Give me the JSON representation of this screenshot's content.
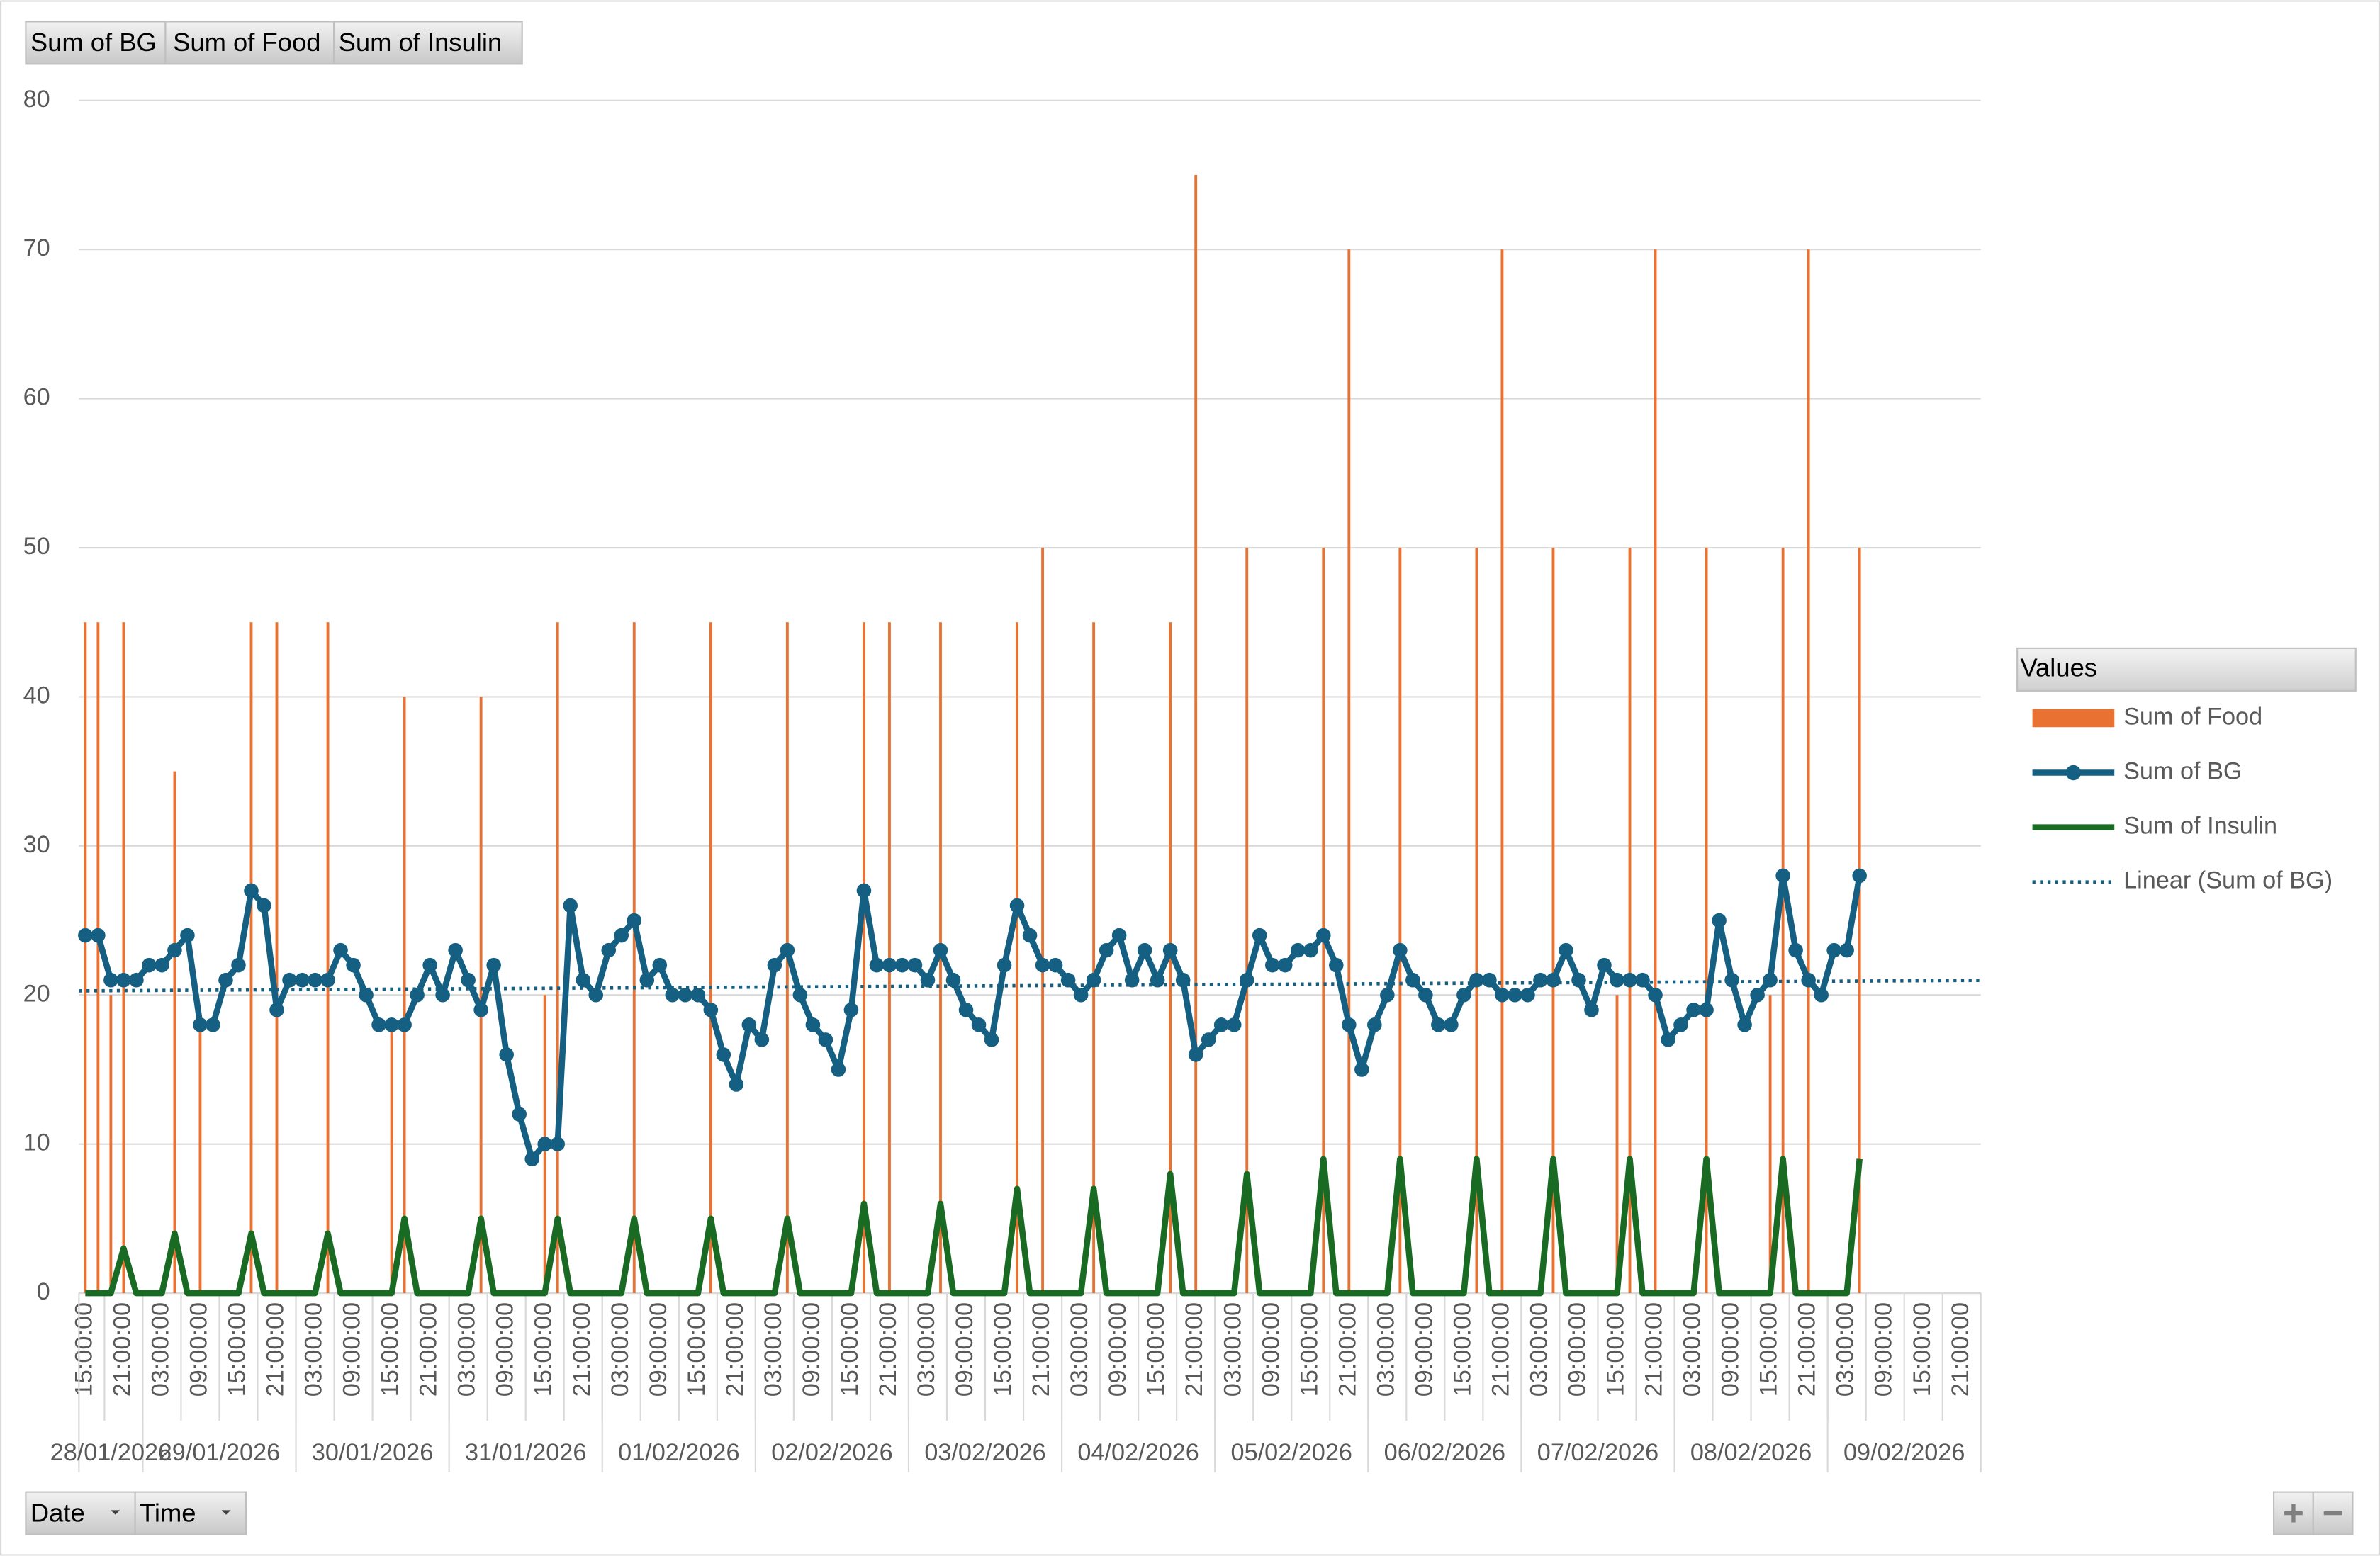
{
  "field_buttons": [
    "Sum of BG",
    "Sum of Food",
    "Sum of Insulin"
  ],
  "axis_field_buttons": [
    "Date",
    "Time"
  ],
  "chart_data": {
    "type": "combo",
    "legend_title": "Values",
    "legend_position": "right",
    "grid": true,
    "ylim": [
      0,
      80
    ],
    "yticks": [
      0,
      10,
      20,
      30,
      40,
      50,
      60,
      70,
      80
    ],
    "categories": [
      "15:00:00",
      null,
      null,
      "21:00:00",
      null,
      null,
      "03:00:00",
      null,
      null,
      "09:00:00",
      null,
      null,
      "15:00:00",
      null,
      null,
      "21:00:00",
      null,
      null,
      "03:00:00",
      null,
      null,
      "09:00:00",
      null,
      null,
      "15:00:00",
      null,
      null,
      "21:00:00",
      null,
      null,
      "03:00:00",
      null,
      null,
      "09:00:00",
      null,
      null,
      "15:00:00",
      null,
      null,
      "21:00:00",
      null,
      null,
      "03:00:00",
      null,
      null,
      "09:00:00",
      null,
      null,
      "15:00:00",
      null,
      null,
      "21:00:00",
      null,
      null,
      "03:00:00",
      null,
      null,
      "09:00:00",
      null,
      null,
      "15:00:00",
      null,
      null,
      "21:00:00",
      null,
      null,
      "03:00:00",
      null,
      null,
      "09:00:00",
      null,
      null,
      "15:00:00",
      null,
      null,
      "21:00:00",
      null,
      null,
      "03:00:00",
      null,
      null,
      "09:00:00",
      null,
      null,
      "15:00:00",
      null,
      null,
      "21:00:00",
      null,
      null,
      "03:00:00",
      null,
      null,
      "09:00:00",
      null,
      null,
      "15:00:00",
      null,
      null,
      "21:00:00",
      null,
      null,
      "03:00:00",
      null,
      null,
      "09:00:00",
      null,
      null,
      "15:00:00",
      null,
      null,
      "21:00:00",
      null,
      null,
      "03:00:00",
      null,
      null,
      "09:00:00",
      null,
      null,
      "15:00:00",
      null,
      null,
      "21:00:00",
      null,
      null,
      "03:00:00",
      null,
      null,
      "09:00:00",
      null,
      null,
      "15:00:00",
      null,
      null,
      "21:00:00",
      null,
      null,
      "03:00:00",
      null,
      null,
      "09:00:00",
      null,
      null,
      "15:00:00",
      null,
      null,
      "21:00:00",
      null
    ],
    "date_groups": [
      {
        "label": "28/01/2026",
        "count": 5
      },
      {
        "label": "29/01/2026",
        "count": 12
      },
      {
        "label": "30/01/2026",
        "count": 12
      },
      {
        "label": "31/01/2026",
        "count": 12
      },
      {
        "label": "01/02/2026",
        "count": 12
      },
      {
        "label": "02/02/2026",
        "count": 12
      },
      {
        "label": "03/02/2026",
        "count": 12
      },
      {
        "label": "04/02/2026",
        "count": 12
      },
      {
        "label": "05/02/2026",
        "count": 12
      },
      {
        "label": "06/02/2026",
        "count": 12
      },
      {
        "label": "07/02/2026",
        "count": 12
      },
      {
        "label": "08/02/2026",
        "count": 12
      },
      {
        "label": "09/02/2026",
        "count": 12
      }
    ],
    "series": [
      {
        "name": "Sum of Food",
        "type": "bar",
        "color": "#e97132",
        "values": [
          45,
          45,
          20,
          45,
          0,
          0,
          0,
          35,
          0,
          18,
          0,
          0,
          0,
          45,
          0,
          45,
          0,
          0,
          0,
          45,
          0,
          0,
          0,
          0,
          18,
          40,
          0,
          0,
          0,
          0,
          0,
          40,
          0,
          0,
          0,
          0,
          20,
          45,
          0,
          0,
          0,
          0,
          0,
          45,
          0,
          0,
          0,
          0,
          0,
          45,
          0,
          0,
          0,
          0,
          0,
          45,
          0,
          0,
          0,
          0,
          0,
          45,
          0,
          45,
          0,
          0,
          0,
          45,
          0,
          0,
          0,
          0,
          0,
          45,
          0,
          50,
          0,
          0,
          0,
          45,
          0,
          0,
          0,
          0,
          0,
          45,
          0,
          75,
          0,
          0,
          0,
          50,
          0,
          0,
          0,
          0,
          0,
          50,
          0,
          70,
          0,
          0,
          0,
          50,
          0,
          0,
          0,
          0,
          0,
          50,
          0,
          70,
          0,
          0,
          0,
          50,
          0,
          0,
          0,
          0,
          20,
          50,
          0,
          70,
          0,
          0,
          0,
          50,
          0,
          0,
          0,
          0,
          20,
          50,
          0,
          70,
          0,
          0,
          0,
          50,
          null,
          null,
          null,
          null,
          null,
          null,
          null,
          null,
          null
        ]
      },
      {
        "name": "Sum of BG",
        "type": "line",
        "markers": true,
        "color": "#156082",
        "trendline": {
          "name": "Linear (Sum of BG)",
          "type": "linear"
        },
        "values": [
          24,
          24,
          21,
          21,
          21,
          22,
          22,
          23,
          24,
          18,
          18,
          21,
          22,
          27,
          26,
          19,
          21,
          21,
          21,
          21,
          23,
          22,
          20,
          18,
          18,
          18,
          20,
          22,
          20,
          23,
          21,
          19,
          22,
          16,
          12,
          9,
          10,
          10,
          26,
          21,
          20,
          23,
          24,
          25,
          21,
          22,
          20,
          20,
          20,
          19,
          16,
          14,
          18,
          17,
          22,
          23,
          20,
          18,
          17,
          15,
          19,
          27,
          22,
          22,
          22,
          22,
          21,
          23,
          21,
          19,
          18,
          17,
          22,
          26,
          24,
          22,
          22,
          21,
          20,
          21,
          23,
          24,
          21,
          23,
          21,
          23,
          21,
          16,
          17,
          18,
          18,
          21,
          24,
          22,
          22,
          23,
          23,
          24,
          22,
          18,
          15,
          18,
          20,
          23,
          21,
          20,
          18,
          18,
          20,
          21,
          21,
          20,
          20,
          20,
          21,
          21,
          23,
          21,
          19,
          22,
          21,
          21,
          21,
          20,
          17,
          18,
          19,
          19,
          25,
          21,
          18,
          20,
          21,
          28,
          23,
          21,
          20,
          23,
          23,
          28,
          null,
          null,
          null,
          null,
          null,
          null,
          null,
          null,
          null
        ]
      },
      {
        "name": "Sum of Insulin",
        "type": "line",
        "markers": false,
        "color": "#196b24",
        "values": [
          0,
          0,
          0,
          3,
          0,
          0,
          0,
          4,
          0,
          0,
          0,
          0,
          0,
          4,
          0,
          0,
          0,
          0,
          0,
          4,
          0,
          0,
          0,
          0,
          0,
          5,
          0,
          0,
          0,
          0,
          0,
          5,
          0,
          0,
          0,
          0,
          0,
          5,
          0,
          0,
          0,
          0,
          0,
          5,
          0,
          0,
          0,
          0,
          0,
          5,
          0,
          0,
          0,
          0,
          0,
          5,
          0,
          0,
          0,
          0,
          0,
          6,
          0,
          0,
          0,
          0,
          0,
          6,
          0,
          0,
          0,
          0,
          0,
          7,
          0,
          0,
          0,
          0,
          0,
          7,
          0,
          0,
          0,
          0,
          0,
          8,
          0,
          0,
          0,
          0,
          0,
          8,
          0,
          0,
          0,
          0,
          0,
          9,
          0,
          0,
          0,
          0,
          0,
          9,
          0,
          0,
          0,
          0,
          0,
          9,
          0,
          0,
          0,
          0,
          0,
          9,
          0,
          0,
          0,
          0,
          0,
          9,
          0,
          0,
          0,
          0,
          0,
          9,
          0,
          0,
          0,
          0,
          0,
          9,
          0,
          0,
          0,
          0,
          0,
          9,
          null,
          null,
          null,
          null,
          null,
          null,
          null,
          null,
          null
        ]
      }
    ]
  }
}
